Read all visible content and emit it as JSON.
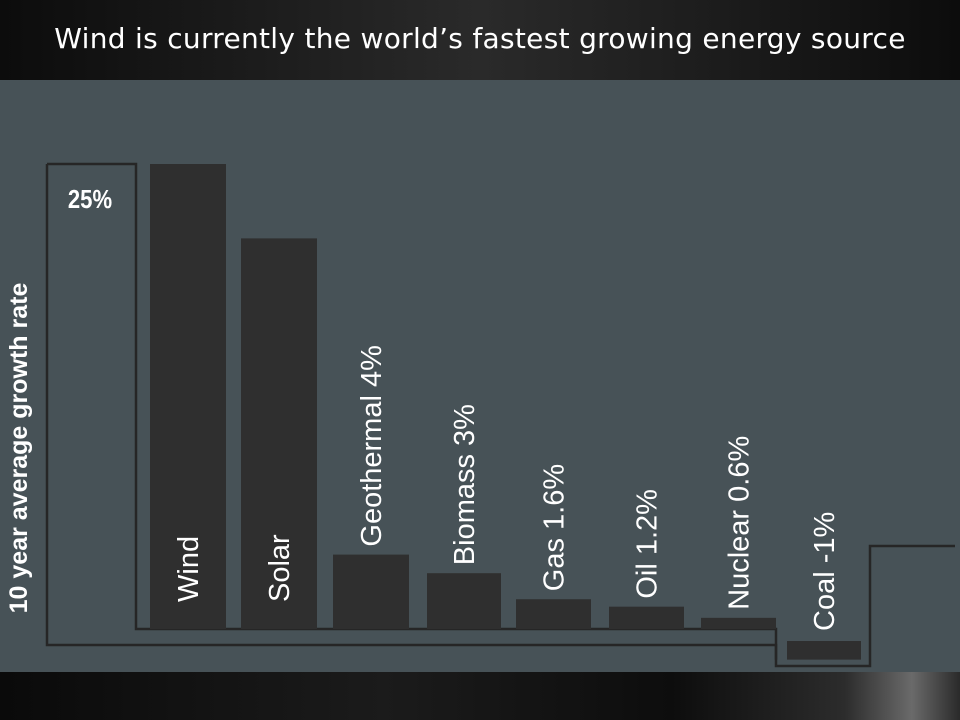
{
  "slide": {
    "title": "Wind is currently the world’s fastest growing energy source"
  },
  "chart_data": {
    "type": "bar",
    "title": "",
    "xlabel": "",
    "ylabel": "10 year average growth rate",
    "categories": [
      "Wind",
      "Solar",
      "Geothermal",
      "Biomass",
      "Gas",
      "Oil",
      "Nuclear",
      "Coal"
    ],
    "values": [
      25,
      21,
      4,
      3,
      1.6,
      1.2,
      0.6,
      -1
    ],
    "bar_labels": [
      "Wind",
      "Solar",
      "Geothermal 4%",
      "Biomass 3%",
      "Gas 1.6%",
      "Oil 1.2%",
      "Nuclear 0.6%",
      "Coal -1%"
    ],
    "callout": "25%",
    "ylim": [
      -1.6,
      26
    ],
    "grid": false,
    "legend": "none"
  },
  "colors": {
    "background": "#475257",
    "bar": "#2f2f2f",
    "outline": "#262626",
    "text": "#ffffff"
  }
}
